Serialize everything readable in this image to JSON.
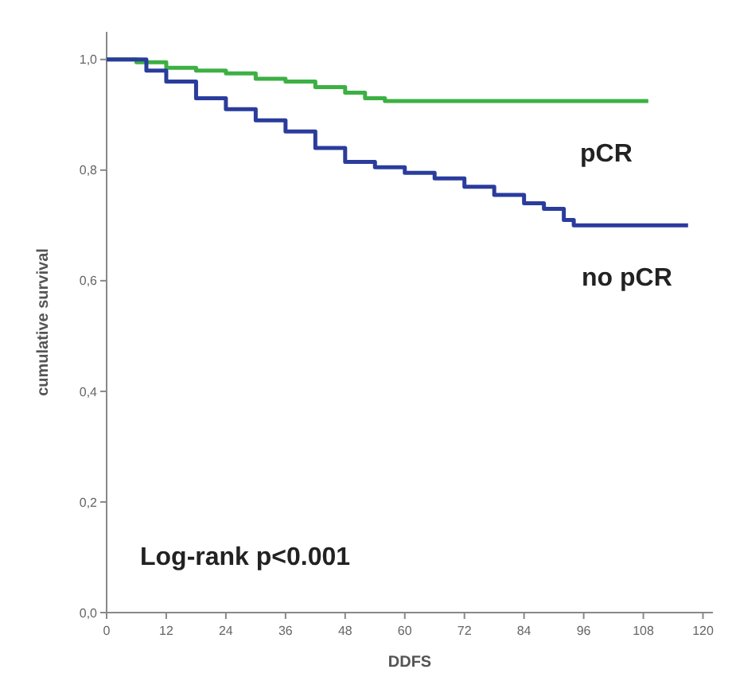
{
  "chart_data": {
    "type": "step",
    "xlabel": "DDFS",
    "ylabel": "cumulative survival",
    "xlim": [
      0,
      122
    ],
    "ylim": [
      0,
      1.05
    ],
    "xticks": [
      0,
      12,
      24,
      36,
      48,
      60,
      72,
      84,
      96,
      108,
      120
    ],
    "yticks": [
      {
        "value": 0,
        "label": "0,0"
      },
      {
        "value": 0.2,
        "label": "0,2"
      },
      {
        "value": 0.4,
        "label": "0,4"
      },
      {
        "value": 0.6,
        "label": "0,6"
      },
      {
        "value": 0.8,
        "label": "0,8"
      },
      {
        "value": 1,
        "label": "1,0"
      }
    ],
    "series": [
      {
        "name": "pCR",
        "color": "#3cb043",
        "x": [
          0,
          6,
          12,
          18,
          24,
          30,
          36,
          42,
          48,
          52,
          56,
          109
        ],
        "values": [
          1,
          0.995,
          0.985,
          0.98,
          0.975,
          0.965,
          0.96,
          0.95,
          0.94,
          0.93,
          0.925,
          0.925
        ]
      },
      {
        "name": "no pCR",
        "color": "#2a3c9c",
        "x": [
          0,
          4,
          8,
          12,
          18,
          24,
          30,
          36,
          42,
          48,
          54,
          60,
          66,
          72,
          78,
          84,
          88,
          92,
          94,
          117
        ],
        "values": [
          1,
          1,
          0.98,
          0.96,
          0.93,
          0.91,
          0.89,
          0.87,
          0.84,
          0.815,
          0.805,
          0.795,
          0.785,
          0.77,
          0.755,
          0.74,
          0.73,
          0.71,
          0.7,
          0.7
        ]
      }
    ],
    "annotations": [
      "Log-rank p<0.001"
    ]
  }
}
